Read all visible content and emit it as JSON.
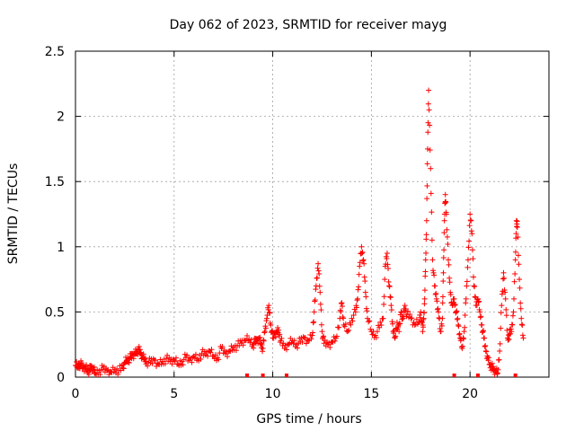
{
  "chart_data": {
    "type": "scatter",
    "title": "Day 062 of 2023, SRMTID for receiver mayg",
    "xlabel": "GPS time / hours",
    "ylabel": "SRMTID / TECUs",
    "xlim": [
      0,
      24
    ],
    "ylim": [
      0,
      2.5
    ],
    "xticks": [
      0,
      5,
      10,
      15,
      20
    ],
    "yticks": [
      0,
      0.5,
      1,
      1.5,
      2,
      2.5
    ],
    "xtick_labels": [
      "0",
      "5",
      "10",
      "15",
      "20"
    ],
    "ytick_labels": [
      "0",
      "0.5",
      "1",
      "1.5",
      "2",
      "2.5"
    ],
    "grid": true,
    "marker": "+",
    "color": "#ff0000",
    "series": [
      {
        "name": "SRMTID",
        "x": [
          0.0,
          0.1,
          0.2,
          0.3,
          0.4,
          0.5,
          0.6,
          0.7,
          0.8,
          0.9,
          1.0,
          1.2,
          1.4,
          1.6,
          1.8,
          2.0,
          2.2,
          2.4,
          2.5,
          2.6,
          2.7,
          2.8,
          2.9,
          3.0,
          3.1,
          3.2,
          3.3,
          3.4,
          3.5,
          3.6,
          3.8,
          4.0,
          4.2,
          4.4,
          4.6,
          4.8,
          5.0,
          5.2,
          5.4,
          5.6,
          5.8,
          6.0,
          6.2,
          6.4,
          6.6,
          6.8,
          7.0,
          7.2,
          7.4,
          7.6,
          7.8,
          8.0,
          8.2,
          8.4,
          8.6,
          8.8,
          9.0,
          9.1,
          9.2,
          9.3,
          9.4,
          9.5,
          9.6,
          9.7,
          9.8,
          9.9,
          10.0,
          10.1,
          10.2,
          10.3,
          10.4,
          10.6,
          10.8,
          11.0,
          11.2,
          11.4,
          11.6,
          11.8,
          12.0,
          12.1,
          12.2,
          12.3,
          12.4,
          12.5,
          12.6,
          12.8,
          13.0,
          13.2,
          13.4,
          13.5,
          13.6,
          13.8,
          14.0,
          14.2,
          14.3,
          14.4,
          14.5,
          14.6,
          14.7,
          14.8,
          15.0,
          15.2,
          15.4,
          15.6,
          15.7,
          15.8,
          15.9,
          16.0,
          16.1,
          16.2,
          16.3,
          16.4,
          16.5,
          16.6,
          16.7,
          16.8,
          17.0,
          17.2,
          17.4,
          17.5,
          17.6,
          17.65,
          17.7,
          17.75,
          17.8,
          17.85,
          17.9,
          18.0,
          18.1,
          18.2,
          18.3,
          18.4,
          18.5,
          18.6,
          18.65,
          18.7,
          18.75,
          18.8,
          18.9,
          19.0,
          19.1,
          19.2,
          19.3,
          19.4,
          19.5,
          19.6,
          19.7,
          19.8,
          19.9,
          20.0,
          20.1,
          20.2,
          20.3,
          20.4,
          20.5,
          20.6,
          20.7,
          20.8,
          20.9,
          21.0,
          21.1,
          21.2,
          21.3,
          21.4,
          21.5,
          21.6,
          21.7,
          21.8,
          21.9,
          22.0,
          22.1,
          22.2,
          22.3,
          22.35,
          22.4,
          22.5,
          22.6,
          22.7
        ],
        "y": [
          0.09,
          0.08,
          0.1,
          0.09,
          0.07,
          0.08,
          0.06,
          0.05,
          0.07,
          0.06,
          0.03,
          0.05,
          0.06,
          0.05,
          0.04,
          0.06,
          0.05,
          0.07,
          0.11,
          0.13,
          0.14,
          0.15,
          0.17,
          0.18,
          0.2,
          0.21,
          0.18,
          0.15,
          0.14,
          0.12,
          0.11,
          0.13,
          0.1,
          0.12,
          0.14,
          0.12,
          0.13,
          0.1,
          0.12,
          0.15,
          0.13,
          0.16,
          0.14,
          0.18,
          0.17,
          0.2,
          0.16,
          0.15,
          0.22,
          0.18,
          0.2,
          0.23,
          0.24,
          0.26,
          0.28,
          0.29,
          0.25,
          0.27,
          0.28,
          0.3,
          0.26,
          0.22,
          0.35,
          0.45,
          0.55,
          0.4,
          0.3,
          0.33,
          0.35,
          0.36,
          0.28,
          0.22,
          0.25,
          0.28,
          0.25,
          0.27,
          0.3,
          0.28,
          0.32,
          0.5,
          0.7,
          0.87,
          0.65,
          0.35,
          0.26,
          0.25,
          0.27,
          0.3,
          0.45,
          0.57,
          0.4,
          0.35,
          0.45,
          0.5,
          0.6,
          0.85,
          1.0,
          0.9,
          0.65,
          0.45,
          0.35,
          0.32,
          0.38,
          0.45,
          0.85,
          0.95,
          0.7,
          0.55,
          0.35,
          0.3,
          0.42,
          0.35,
          0.5,
          0.45,
          0.55,
          0.48,
          0.45,
          0.4,
          0.42,
          0.5,
          0.35,
          0.45,
          0.6,
          0.9,
          1.2,
          1.75,
          2.2,
          1.6,
          0.9,
          0.7,
          0.6,
          0.5,
          0.35,
          0.45,
          0.8,
          1.2,
          1.4,
          1.25,
          0.9,
          0.65,
          0.55,
          0.6,
          0.5,
          0.4,
          0.3,
          0.22,
          0.35,
          0.6,
          0.9,
          1.25,
          1.1,
          0.7,
          0.55,
          0.6,
          0.5,
          0.4,
          0.3,
          0.2,
          0.15,
          0.1,
          0.08,
          0.05,
          0.04,
          0.03,
          0.2,
          0.55,
          0.8,
          0.6,
          0.3,
          0.33,
          0.35,
          0.5,
          0.9,
          1.2,
          1.15,
          0.75,
          0.45,
          0.3
        ]
      }
    ],
    "baseline_points_x": [
      8.7,
      9.5,
      10.7,
      19.2,
      20.4,
      22.3
    ]
  }
}
